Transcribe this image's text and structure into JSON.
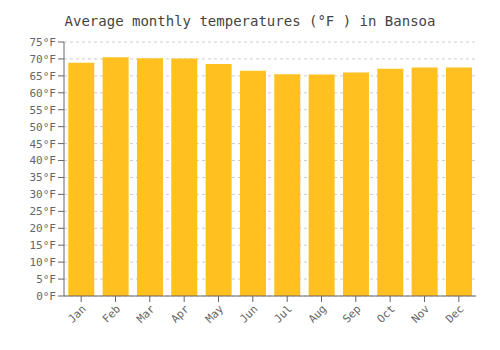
{
  "chart_data": {
    "type": "bar",
    "title": "Average monthly temperatures (°F ) in Bansoa",
    "categories": [
      "Jan",
      "Feb",
      "Mar",
      "Apr",
      "May",
      "Jun",
      "Jul",
      "Aug",
      "Sep",
      "Oct",
      "Nov",
      "Dec"
    ],
    "values": [
      68.9,
      70.5,
      70.2,
      70.1,
      68.5,
      66.5,
      65.5,
      65.4,
      66.0,
      67.1,
      67.5,
      67.5
    ],
    "color": "#FFC020",
    "ylim": [
      0,
      75
    ],
    "yticks": [
      {
        "value": 0,
        "label": "0°F"
      },
      {
        "value": 5,
        "label": "5°F"
      },
      {
        "value": 10,
        "label": "10°F"
      },
      {
        "value": 15,
        "label": "15°F"
      },
      {
        "value": 20,
        "label": "20°F"
      },
      {
        "value": 25,
        "label": "25°F"
      },
      {
        "value": 30,
        "label": "30°F"
      },
      {
        "value": 35,
        "label": "35°F"
      },
      {
        "value": 40,
        "label": "40°F"
      },
      {
        "value": 45,
        "label": "45°F"
      },
      {
        "value": 50,
        "label": "50°F"
      },
      {
        "value": 55,
        "label": "55°F"
      },
      {
        "value": 60,
        "label": "60°F"
      },
      {
        "value": 65,
        "label": "65°F"
      },
      {
        "value": 70,
        "label": "70°F"
      },
      {
        "value": 75,
        "label": "75°F"
      }
    ],
    "grid": true
  }
}
